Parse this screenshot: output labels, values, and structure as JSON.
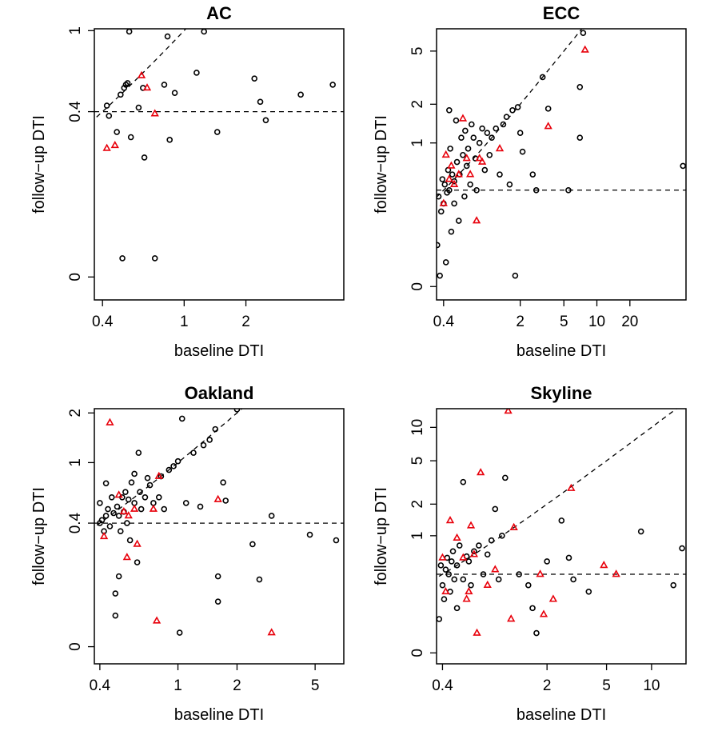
{
  "chart_data": [
    {
      "type": "scatter",
      "title": "AC",
      "xlabel": "baseline DTI",
      "ylabel": "follow−up DTI",
      "xticks": [
        {
          "v": 0.4,
          "label": "0.4"
        },
        {
          "v": 1,
          "label": "1"
        },
        {
          "v": 2,
          "label": "2"
        }
      ],
      "yticks": [
        {
          "v": 0,
          "label": "0"
        },
        {
          "v": 0.4,
          "label": "0.4"
        },
        {
          "v": 1,
          "label": "1"
        }
      ],
      "reference_lines": {
        "diagonal": "y = x",
        "horizontal_y": 0.4
      },
      "series": [
        {
          "marker": "circle",
          "color": "#000000",
          "points": [
            [
              0.42,
              0.43
            ],
            [
              0.43,
              0.38
            ],
            [
              0.47,
              0.31
            ],
            [
              0.49,
              0.49
            ],
            [
              0.5,
              0.02
            ],
            [
              0.51,
              0.53
            ],
            [
              0.52,
              0.55
            ],
            [
              0.53,
              0.56
            ],
            [
              0.54,
              0.99
            ],
            [
              0.55,
              0.29
            ],
            [
              0.6,
              0.42
            ],
            [
              0.63,
              0.53
            ],
            [
              0.64,
              0.22
            ],
            [
              0.72,
              0.02
            ],
            [
              0.8,
              0.55
            ],
            [
              0.83,
              0.94
            ],
            [
              0.85,
              0.28
            ],
            [
              0.9,
              0.5
            ],
            [
              1.15,
              0.63
            ],
            [
              1.25,
              0.99
            ],
            [
              1.45,
              0.31
            ],
            [
              2.2,
              0.59
            ],
            [
              2.35,
              0.45
            ],
            [
              2.5,
              0.36
            ],
            [
              3.7,
              0.49
            ],
            [
              5.3,
              0.55
            ]
          ]
        },
        {
          "marker": "triangle",
          "color": "#e8000b",
          "points": [
            [
              0.42,
              0.25
            ],
            [
              0.46,
              0.26
            ],
            [
              0.62,
              0.61
            ],
            [
              0.66,
              0.53
            ],
            [
              0.72,
              0.39
            ]
          ]
        }
      ]
    },
    {
      "type": "scatter",
      "title": "ECC",
      "xlabel": "baseline DTI",
      "ylabel": "follow−up DTI",
      "xticks": [
        {
          "v": 0.4,
          "label": "0.4"
        },
        {
          "v": 2,
          "label": "2"
        },
        {
          "v": 5,
          "label": "5"
        },
        {
          "v": 10,
          "label": "10"
        },
        {
          "v": 20,
          "label": "20"
        }
      ],
      "yticks": [
        {
          "v": 0,
          "label": "0"
        },
        {
          "v": 1,
          "label": "1"
        },
        {
          "v": 2,
          "label": "2"
        },
        {
          "v": 5,
          "label": "5"
        }
      ],
      "reference_lines": {
        "diagonal": "y = x",
        "horizontal_y": 0.4
      },
      "series": [
        {
          "marker": "circle",
          "color": "#000000",
          "points": [
            [
              0.35,
              0.1
            ],
            [
              0.36,
              0.35
            ],
            [
              0.37,
              0.02
            ],
            [
              0.38,
              0.25
            ],
            [
              0.39,
              0.5
            ],
            [
              0.4,
              0.3
            ],
            [
              0.41,
              0.45
            ],
            [
              0.42,
              0.05
            ],
            [
              0.43,
              0.38
            ],
            [
              0.44,
              0.6
            ],
            [
              0.45,
              1.8
            ],
            [
              0.45,
              0.4
            ],
            [
              0.46,
              0.9
            ],
            [
              0.47,
              0.15
            ],
            [
              0.48,
              0.55
            ],
            [
              0.5,
              0.3
            ],
            [
              0.5,
              0.48
            ],
            [
              0.52,
              1.5
            ],
            [
              0.53,
              0.7
            ],
            [
              0.55,
              0.2
            ],
            [
              0.56,
              0.55
            ],
            [
              0.58,
              1.1
            ],
            [
              0.6,
              0.8
            ],
            [
              0.62,
              0.35
            ],
            [
              0.63,
              1.25
            ],
            [
              0.65,
              0.65
            ],
            [
              0.67,
              0.9
            ],
            [
              0.7,
              0.45
            ],
            [
              0.72,
              1.4
            ],
            [
              0.75,
              1.1
            ],
            [
              0.78,
              0.75
            ],
            [
              0.8,
              0.4
            ],
            [
              0.85,
              1.0
            ],
            [
              0.9,
              1.3
            ],
            [
              0.95,
              0.6
            ],
            [
              1.0,
              1.2
            ],
            [
              1.05,
              0.8
            ],
            [
              1.1,
              1.1
            ],
            [
              1.2,
              1.3
            ],
            [
              1.3,
              0.55
            ],
            [
              1.4,
              1.4
            ],
            [
              1.5,
              1.6
            ],
            [
              1.6,
              0.45
            ],
            [
              1.7,
              1.8
            ],
            [
              1.8,
              0.02
            ],
            [
              1.9,
              1.9
            ],
            [
              2.0,
              1.2
            ],
            [
              2.1,
              0.85
            ],
            [
              2.6,
              0.55
            ],
            [
              2.8,
              0.4
            ],
            [
              3.2,
              3.2
            ],
            [
              3.6,
              1.85
            ],
            [
              5.5,
              0.4
            ],
            [
              7.0,
              2.7
            ],
            [
              7.0,
              1.1
            ],
            [
              7.5,
              6.8
            ],
            [
              61.0,
              0.65
            ]
          ]
        },
        {
          "marker": "triangle",
          "color": "#e8000b",
          "points": [
            [
              0.4,
              0.3
            ],
            [
              0.42,
              0.8
            ],
            [
              0.45,
              0.5
            ],
            [
              0.47,
              0.65
            ],
            [
              0.5,
              0.45
            ],
            [
              0.55,
              0.55
            ],
            [
              0.6,
              1.55
            ],
            [
              0.65,
              0.75
            ],
            [
              0.7,
              0.55
            ],
            [
              0.8,
              0.2
            ],
            [
              0.85,
              0.75
            ],
            [
              0.9,
              0.7
            ],
            [
              1.3,
              0.9
            ],
            [
              3.6,
              1.35
            ],
            [
              7.8,
              5.1
            ]
          ]
        }
      ]
    },
    {
      "type": "scatter",
      "title": "Oakland",
      "xlabel": "baseline DTI",
      "ylabel": "follow−up DTI",
      "xticks": [
        {
          "v": 0.4,
          "label": "0.4"
        },
        {
          "v": 1,
          "label": "1"
        },
        {
          "v": 2,
          "label": "2"
        },
        {
          "v": 5,
          "label": "5"
        }
      ],
      "yticks": [
        {
          "v": 0,
          "label": "0"
        },
        {
          "v": 0.4,
          "label": "0.4"
        },
        {
          "v": 1,
          "label": "1"
        },
        {
          "v": 2,
          "label": "2"
        }
      ],
      "reference_lines": {
        "diagonal": "y = x",
        "horizontal_y": 0.4
      },
      "series": [
        {
          "marker": "circle",
          "color": "#000000",
          "points": [
            [
              0.4,
              0.55
            ],
            [
              0.4,
              0.4
            ],
            [
              0.41,
              0.42
            ],
            [
              0.42,
              0.35
            ],
            [
              0.43,
              0.45
            ],
            [
              0.43,
              0.74
            ],
            [
              0.44,
              0.5
            ],
            [
              0.45,
              0.38
            ],
            [
              0.46,
              0.6
            ],
            [
              0.47,
              0.47
            ],
            [
              0.48,
              0.05
            ],
            [
              0.48,
              0.1
            ],
            [
              0.49,
              0.52
            ],
            [
              0.5,
              0.45
            ],
            [
              0.5,
              0.15
            ],
            [
              0.51,
              0.35
            ],
            [
              0.52,
              0.6
            ],
            [
              0.53,
              0.48
            ],
            [
              0.54,
              0.65
            ],
            [
              0.55,
              0.4
            ],
            [
              0.56,
              0.58
            ],
            [
              0.57,
              0.3
            ],
            [
              0.58,
              0.75
            ],
            [
              0.6,
              0.55
            ],
            [
              0.6,
              0.85
            ],
            [
              0.62,
              0.2
            ],
            [
              0.63,
              1.15
            ],
            [
              0.64,
              0.65
            ],
            [
              0.65,
              0.5
            ],
            [
              0.68,
              0.6
            ],
            [
              0.7,
              0.8
            ],
            [
              0.72,
              0.72
            ],
            [
              0.75,
              0.55
            ],
            [
              0.8,
              0.6
            ],
            [
              0.82,
              0.82
            ],
            [
              0.85,
              0.5
            ],
            [
              0.9,
              0.9
            ],
            [
              0.95,
              0.95
            ],
            [
              1.0,
              1.02
            ],
            [
              1.02,
              0.02
            ],
            [
              1.05,
              1.85
            ],
            [
              1.1,
              0.55
            ],
            [
              1.2,
              1.15
            ],
            [
              1.3,
              0.52
            ],
            [
              1.35,
              1.28
            ],
            [
              1.45,
              1.38
            ],
            [
              1.55,
              1.6
            ],
            [
              1.6,
              0.15
            ],
            [
              1.6,
              0.08
            ],
            [
              1.7,
              0.75
            ],
            [
              1.75,
              0.57
            ],
            [
              2.0,
              2.1
            ],
            [
              2.4,
              0.28
            ],
            [
              2.6,
              0.14
            ],
            [
              3.0,
              0.45
            ],
            [
              4.7,
              0.33
            ],
            [
              6.4,
              0.3
            ]
          ]
        },
        {
          "marker": "triangle",
          "color": "#e8000b",
          "points": [
            [
              0.42,
              0.32
            ],
            [
              0.45,
              1.75
            ],
            [
              0.5,
              0.62
            ],
            [
              0.53,
              0.48
            ],
            [
              0.55,
              0.22
            ],
            [
              0.56,
              0.45
            ],
            [
              0.6,
              0.5
            ],
            [
              0.62,
              0.28
            ],
            [
              0.75,
              0.5
            ],
            [
              0.78,
              0.04
            ],
            [
              0.8,
              0.82
            ],
            [
              1.6,
              0.58
            ],
            [
              3.0,
              0.02
            ]
          ]
        }
      ]
    },
    {
      "type": "scatter",
      "title": "Skyline",
      "xlabel": "baseline DTI",
      "ylabel": "follow−up DTI",
      "xticks": [
        {
          "v": 0.4,
          "label": "0.4"
        },
        {
          "v": 2,
          "label": "2"
        },
        {
          "v": 5,
          "label": "5"
        },
        {
          "v": 10,
          "label": "10"
        }
      ],
      "yticks": [
        {
          "v": 0,
          "label": "0"
        },
        {
          "v": 1,
          "label": "1"
        },
        {
          "v": 2,
          "label": "2"
        },
        {
          "v": 5,
          "label": "5"
        },
        {
          "v": 10,
          "label": "10"
        }
      ],
      "reference_lines": {
        "diagonal": "y = x",
        "horizontal_y": 0.4
      },
      "series": [
        {
          "marker": "circle",
          "color": "#000000",
          "points": [
            [
              0.38,
              0.1
            ],
            [
              0.39,
              0.5
            ],
            [
              0.4,
              0.3
            ],
            [
              0.41,
              0.2
            ],
            [
              0.42,
              0.45
            ],
            [
              0.43,
              0.6
            ],
            [
              0.44,
              0.4
            ],
            [
              0.45,
              0.25
            ],
            [
              0.46,
              0.55
            ],
            [
              0.47,
              0.7
            ],
            [
              0.48,
              0.35
            ],
            [
              0.5,
              0.15
            ],
            [
              0.5,
              0.5
            ],
            [
              0.52,
              0.8
            ],
            [
              0.55,
              0.35
            ],
            [
              0.55,
              3.2
            ],
            [
              0.58,
              0.62
            ],
            [
              0.6,
              0.55
            ],
            [
              0.62,
              0.3
            ],
            [
              0.65,
              0.7
            ],
            [
              0.7,
              0.8
            ],
            [
              0.75,
              0.4
            ],
            [
              0.8,
              0.65
            ],
            [
              0.85,
              0.9
            ],
            [
              0.9,
              1.8
            ],
            [
              0.95,
              0.35
            ],
            [
              1.0,
              1.0
            ],
            [
              1.05,
              3.5
            ],
            [
              1.3,
              0.4
            ],
            [
              1.5,
              0.3
            ],
            [
              1.6,
              0.15
            ],
            [
              1.7,
              0.05
            ],
            [
              2.0,
              0.55
            ],
            [
              2.5,
              1.4
            ],
            [
              2.8,
              0.6
            ],
            [
              3.0,
              0.35
            ],
            [
              3.8,
              0.25
            ],
            [
              8.5,
              1.1
            ],
            [
              14.0,
              0.3
            ],
            [
              16.0,
              0.75
            ]
          ]
        },
        {
          "marker": "triangle",
          "color": "#e8000b",
          "points": [
            [
              0.4,
              0.6
            ],
            [
              0.42,
              0.25
            ],
            [
              0.45,
              1.4
            ],
            [
              0.5,
              0.95
            ],
            [
              0.55,
              0.6
            ],
            [
              0.58,
              0.2
            ],
            [
              0.6,
              0.25
            ],
            [
              0.62,
              1.25
            ],
            [
              0.65,
              0.65
            ],
            [
              0.68,
              0.05
            ],
            [
              0.72,
              3.9
            ],
            [
              0.8,
              0.3
            ],
            [
              0.9,
              0.45
            ],
            [
              1.1,
              14.0
            ],
            [
              1.15,
              0.1
            ],
            [
              1.2,
              1.2
            ],
            [
              1.8,
              0.4
            ],
            [
              1.9,
              0.12
            ],
            [
              2.2,
              0.2
            ],
            [
              2.9,
              2.8
            ],
            [
              4.8,
              0.5
            ],
            [
              5.8,
              0.4
            ]
          ]
        }
      ]
    }
  ]
}
